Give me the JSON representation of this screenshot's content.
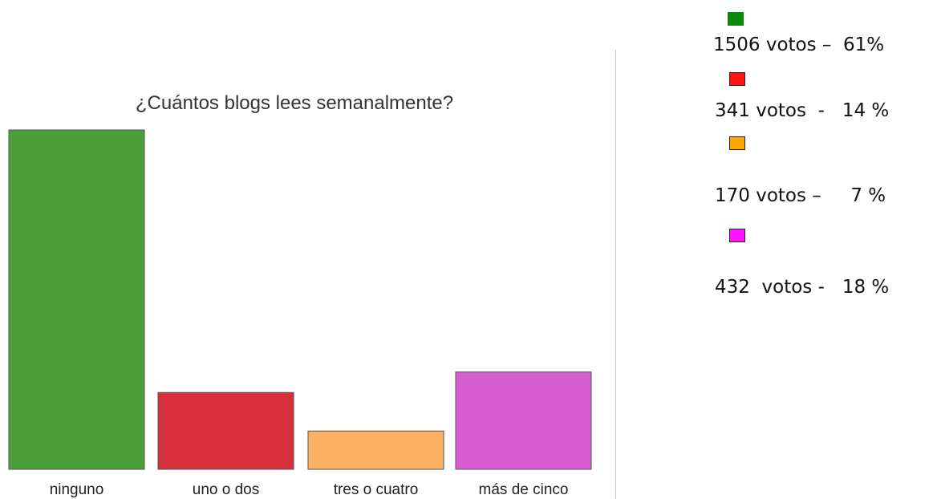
{
  "chart_data": {
    "type": "bar",
    "title": "¿Cuántos blogs lees semanalmente?",
    "categories": [
      "ninguno",
      "uno o dos",
      "tres o cuatro",
      "más de cinco"
    ],
    "values": [
      1506,
      341,
      170,
      432
    ],
    "colors": [
      "#4e9e3a",
      "#d72f3c",
      "#fbb063",
      "#d65ed0"
    ],
    "ylim": [
      0,
      1506
    ],
    "grid": false,
    "legend_position": "right"
  },
  "legend": {
    "items": [
      {
        "votes": "1506",
        "label": "1506 votos –  61%",
        "swatch_color": "#0a8a0a",
        "border_color": "#0a8a0a"
      },
      {
        "votes": "341",
        "label": "341 votos  -   14 %",
        "swatch_color": "#ff1414",
        "border_color": "#222222"
      },
      {
        "votes": "170",
        "label": "170 votos –     7 %",
        "swatch_color": "#ffa500",
        "border_color": "#222222"
      },
      {
        "votes": "432",
        "label": "432  votos -   18 %",
        "swatch_color": "#ff14ff",
        "border_color": "#222222"
      }
    ]
  }
}
